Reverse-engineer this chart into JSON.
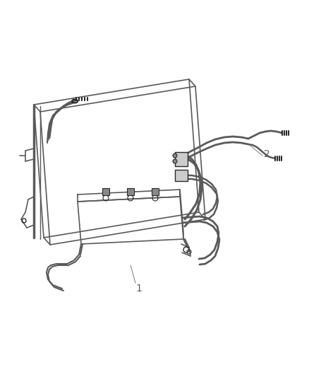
{
  "background_color": "#ffffff",
  "line_color": "#5a5a5a",
  "line_color_dark": "#2a2a2a",
  "line_color_light": "#888888",
  "label_color": "#5a5a5a",
  "figsize": [
    4.38,
    5.33
  ],
  "dpi": 100
}
